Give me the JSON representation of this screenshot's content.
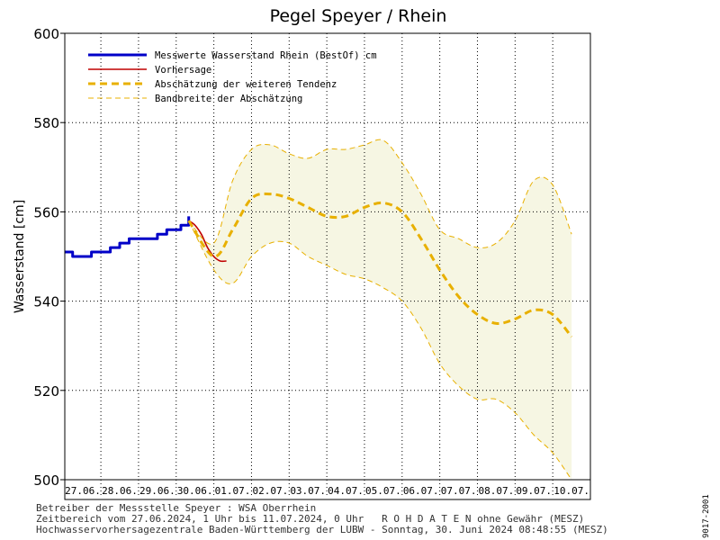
{
  "chart_data": {
    "type": "line",
    "title": "Pegel Speyer / Rhein",
    "ylabel": "Wasserstand [cm]",
    "xlabel": "",
    "ylim": [
      500,
      600
    ],
    "yticks": [
      500,
      520,
      540,
      560,
      580,
      600
    ],
    "xlim": [
      "2024-06-27 01:00",
      "2024-07-11 00:00"
    ],
    "x_tick_labels": [
      "27.06.",
      "28.06.",
      "29.06.",
      "30.06.",
      "01.07.",
      "02.07.",
      "03.07.",
      "04.07.",
      "05.07.",
      "06.07.",
      "07.07.",
      "08.07.",
      "09.07.",
      "10.07."
    ],
    "grid": true,
    "legend_position": "top-left",
    "series": [
      {
        "name": "Messwerte Wasserstand Rhein (BestOf)   cm",
        "color": "#0000c8",
        "style": "solid-thick",
        "x": [
          "2024-06-27 01:00",
          "2024-06-27 06:00",
          "2024-06-27 12:00",
          "2024-06-27 18:00",
          "2024-06-28 00:00",
          "2024-06-28 06:00",
          "2024-06-28 12:00",
          "2024-06-28 18:00",
          "2024-06-29 00:00",
          "2024-06-29 06:00",
          "2024-06-29 12:00",
          "2024-06-29 18:00",
          "2024-06-29 22:00",
          "2024-06-30 03:00",
          "2024-06-30 08:00"
        ],
        "values": [
          551,
          550,
          550,
          551,
          551,
          552,
          553,
          554,
          554,
          554,
          555,
          556,
          556,
          557,
          559
        ]
      },
      {
        "name": "Vorhersage",
        "color": "#c00000",
        "style": "solid",
        "x": [
          "2024-06-30 08:00",
          "2024-06-30 12:00",
          "2024-06-30 16:00",
          "2024-06-30 20:00",
          "2024-07-01 00:00",
          "2024-07-01 04:00",
          "2024-07-01 08:00"
        ],
        "values": [
          558,
          557,
          555,
          552,
          550,
          549,
          549
        ]
      },
      {
        "name": "Abschätzung der weiteren Tendenz",
        "color": "#e8b000",
        "style": "dashed-thick",
        "x": [
          "2024-06-30 08:00",
          "2024-07-01 00:00",
          "2024-07-01 12:00",
          "2024-07-02 00:00",
          "2024-07-02 12:00",
          "2024-07-03 00:00",
          "2024-07-03 12:00",
          "2024-07-04 00:00",
          "2024-07-04 12:00",
          "2024-07-05 00:00",
          "2024-07-05 12:00",
          "2024-07-06 00:00",
          "2024-07-06 12:00",
          "2024-07-07 00:00",
          "2024-07-07 12:00",
          "2024-07-08 00:00",
          "2024-07-08 12:00",
          "2024-07-09 00:00",
          "2024-07-09 12:00",
          "2024-07-10 00:00",
          "2024-07-10 12:00"
        ],
        "values": [
          558,
          550,
          556,
          563,
          564,
          563,
          561,
          559,
          559,
          561,
          562,
          560,
          554,
          547,
          541,
          537,
          535,
          536,
          538,
          537,
          532
        ]
      },
      {
        "name": "Bandbreite der Abschätzung",
        "color": "#e8b000",
        "style": "dashed-thin",
        "fill": "#f6f6e3",
        "x": [
          "2024-06-30 08:00",
          "2024-07-01 00:00",
          "2024-07-01 12:00",
          "2024-07-02 00:00",
          "2024-07-02 12:00",
          "2024-07-03 00:00",
          "2024-07-03 12:00",
          "2024-07-04 00:00",
          "2024-07-04 12:00",
          "2024-07-05 00:00",
          "2024-07-05 12:00",
          "2024-07-06 00:00",
          "2024-07-06 12:00",
          "2024-07-07 00:00",
          "2024-07-07 12:00",
          "2024-07-08 00:00",
          "2024-07-08 12:00",
          "2024-07-09 00:00",
          "2024-07-09 12:00",
          "2024-07-10 00:00",
          "2024-07-10 12:00"
        ],
        "upper": [
          558,
          553,
          567,
          574,
          575,
          573,
          572,
          574,
          574,
          575,
          576,
          571,
          564,
          556,
          554,
          552,
          553,
          558,
          567,
          566,
          555
        ],
        "lower": [
          558,
          547,
          544,
          550,
          553,
          553,
          550,
          548,
          546,
          545,
          543,
          540,
          534,
          526,
          521,
          518,
          518,
          515,
          510,
          506,
          500
        ]
      }
    ]
  },
  "footer": {
    "line1": "Betreiber der Messstelle Speyer : WSA Oberrhein",
    "line2": "Zeitbereich vom 27.06.2024, 1 Uhr bis 11.07.2024, 0 Uhr   R O H D A T E N ohne Gewähr (MESZ)",
    "line3": "Hochwasservorhersagezentrale Baden-Württemberg der LUBW - Sonntag, 30. Juni 2024 08:48:55 (MESZ)",
    "side_label": "9017-2001"
  }
}
